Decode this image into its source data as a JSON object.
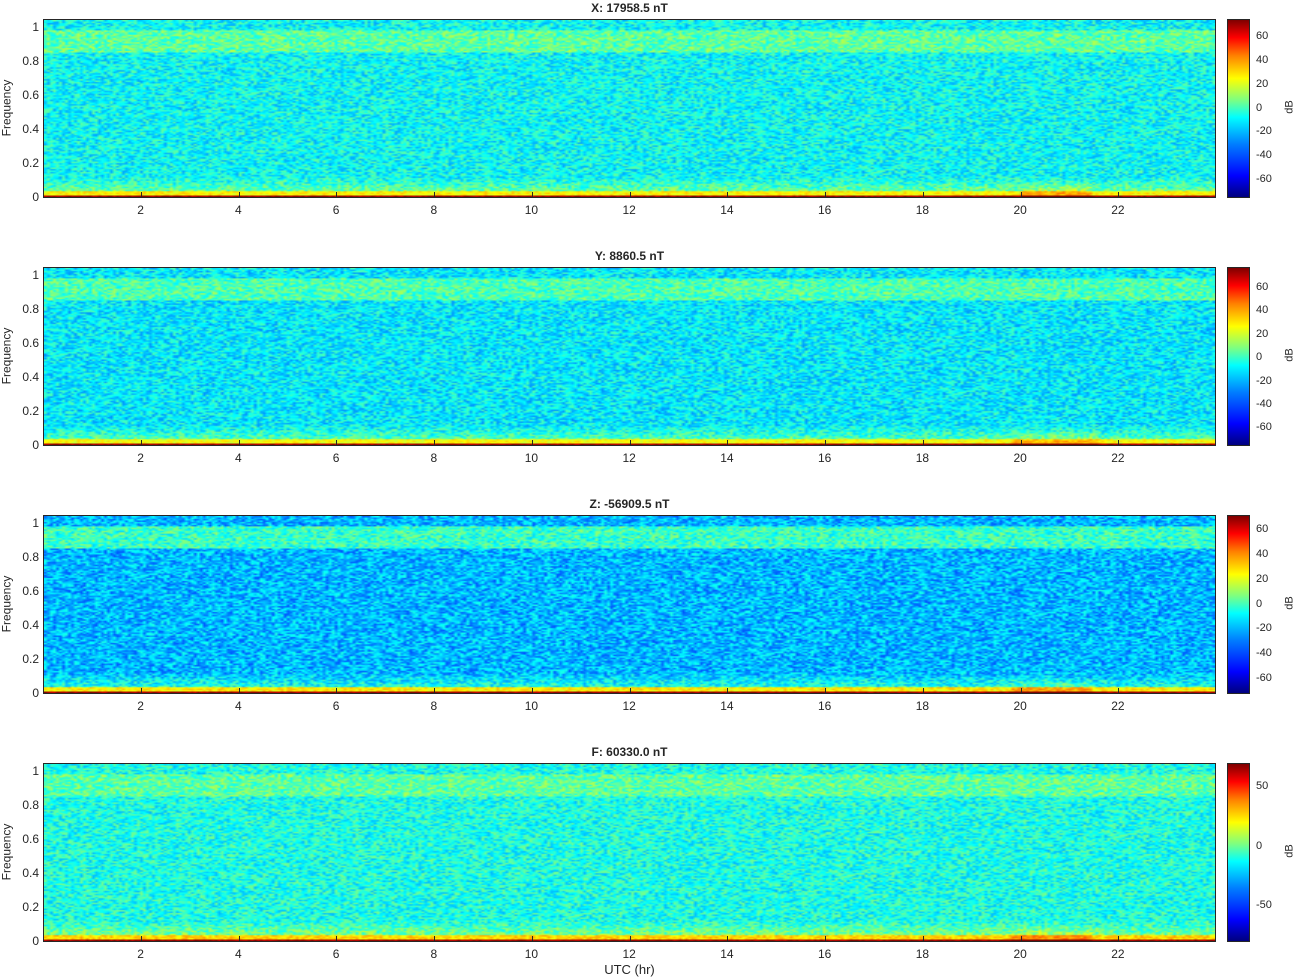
{
  "chart_data": [
    {
      "type": "heatmap",
      "title": "X: 17958.5 nT",
      "ylabel": "Frequency",
      "xlabel": "",
      "xlim": [
        0,
        24
      ],
      "ylim": [
        0,
        1.05
      ],
      "x_ticks": [
        "2",
        "4",
        "6",
        "8",
        "10",
        "12",
        "14",
        "16",
        "18",
        "20",
        "22"
      ],
      "y_ticks": [
        "0",
        "0.2",
        "0.4",
        "0.6",
        "0.8",
        "1"
      ],
      "colorbar": {
        "label": "dB",
        "ticks": [
          "60",
          "40",
          "20",
          "0",
          "-20",
          "-40",
          "-60"
        ],
        "range": [
          -75,
          75
        ]
      },
      "colormap": "jet",
      "features": {
        "baseline_db": -18,
        "low_freq_peak_db": 75,
        "high_band_db": -5,
        "activity_hours": [
          20,
          21.5
        ]
      }
    },
    {
      "type": "heatmap",
      "title": "Y: 8860.5 nT",
      "ylabel": "Frequency",
      "xlabel": "",
      "xlim": [
        0,
        24
      ],
      "ylim": [
        0,
        1.05
      ],
      "x_ticks": [
        "2",
        "4",
        "6",
        "8",
        "10",
        "12",
        "14",
        "16",
        "18",
        "20",
        "22"
      ],
      "y_ticks": [
        "0",
        "0.2",
        "0.4",
        "0.6",
        "0.8",
        "1"
      ],
      "colorbar": {
        "label": "dB",
        "ticks": [
          "60",
          "40",
          "20",
          "0",
          "-20",
          "-40",
          "-60"
        ],
        "range": [
          -75,
          78
        ]
      },
      "colormap": "jet",
      "features": {
        "baseline_db": -20,
        "low_freq_peak_db": 78,
        "high_band_db": -6,
        "activity_hours": [
          19.8,
          21.6
        ]
      }
    },
    {
      "type": "heatmap",
      "title": "Z: -56909.5 nT",
      "ylabel": "Frequency",
      "xlabel": "",
      "xlim": [
        0,
        24
      ],
      "ylim": [
        0,
        1.05
      ],
      "x_ticks": [
        "2",
        "4",
        "6",
        "8",
        "10",
        "12",
        "14",
        "16",
        "18",
        "20",
        "22"
      ],
      "y_ticks": [
        "0",
        "0.2",
        "0.4",
        "0.6",
        "0.8",
        "1"
      ],
      "colorbar": {
        "label": "dB",
        "ticks": [
          "60",
          "40",
          "20",
          "0",
          "-20",
          "-40",
          "-60"
        ],
        "range": [
          -72,
          72
        ]
      },
      "colormap": "jet",
      "features": {
        "baseline_db": -28,
        "low_freq_peak_db": 72,
        "high_band_db": -10,
        "activity_hours": [
          19.8,
          21.5
        ]
      }
    },
    {
      "type": "heatmap",
      "title": "F: 60330.0 nT",
      "ylabel": "Frequency",
      "xlabel": "UTC (hr)",
      "xlim": [
        0,
        24
      ],
      "ylim": [
        0,
        1.05
      ],
      "x_ticks": [
        "2",
        "4",
        "6",
        "8",
        "10",
        "12",
        "14",
        "16",
        "18",
        "20",
        "22"
      ],
      "y_ticks": [
        "0",
        "0.2",
        "0.4",
        "0.6",
        "0.8",
        "1"
      ],
      "colorbar": {
        "label": "dB",
        "ticks": [
          "50",
          "0",
          "-50"
        ],
        "range": [
          -80,
          70
        ]
      },
      "colormap": "jet",
      "features": {
        "baseline_db": -20,
        "low_freq_peak_db": 70,
        "high_band_db": -10,
        "activity_hours": [
          19.8,
          21.5
        ]
      }
    }
  ]
}
